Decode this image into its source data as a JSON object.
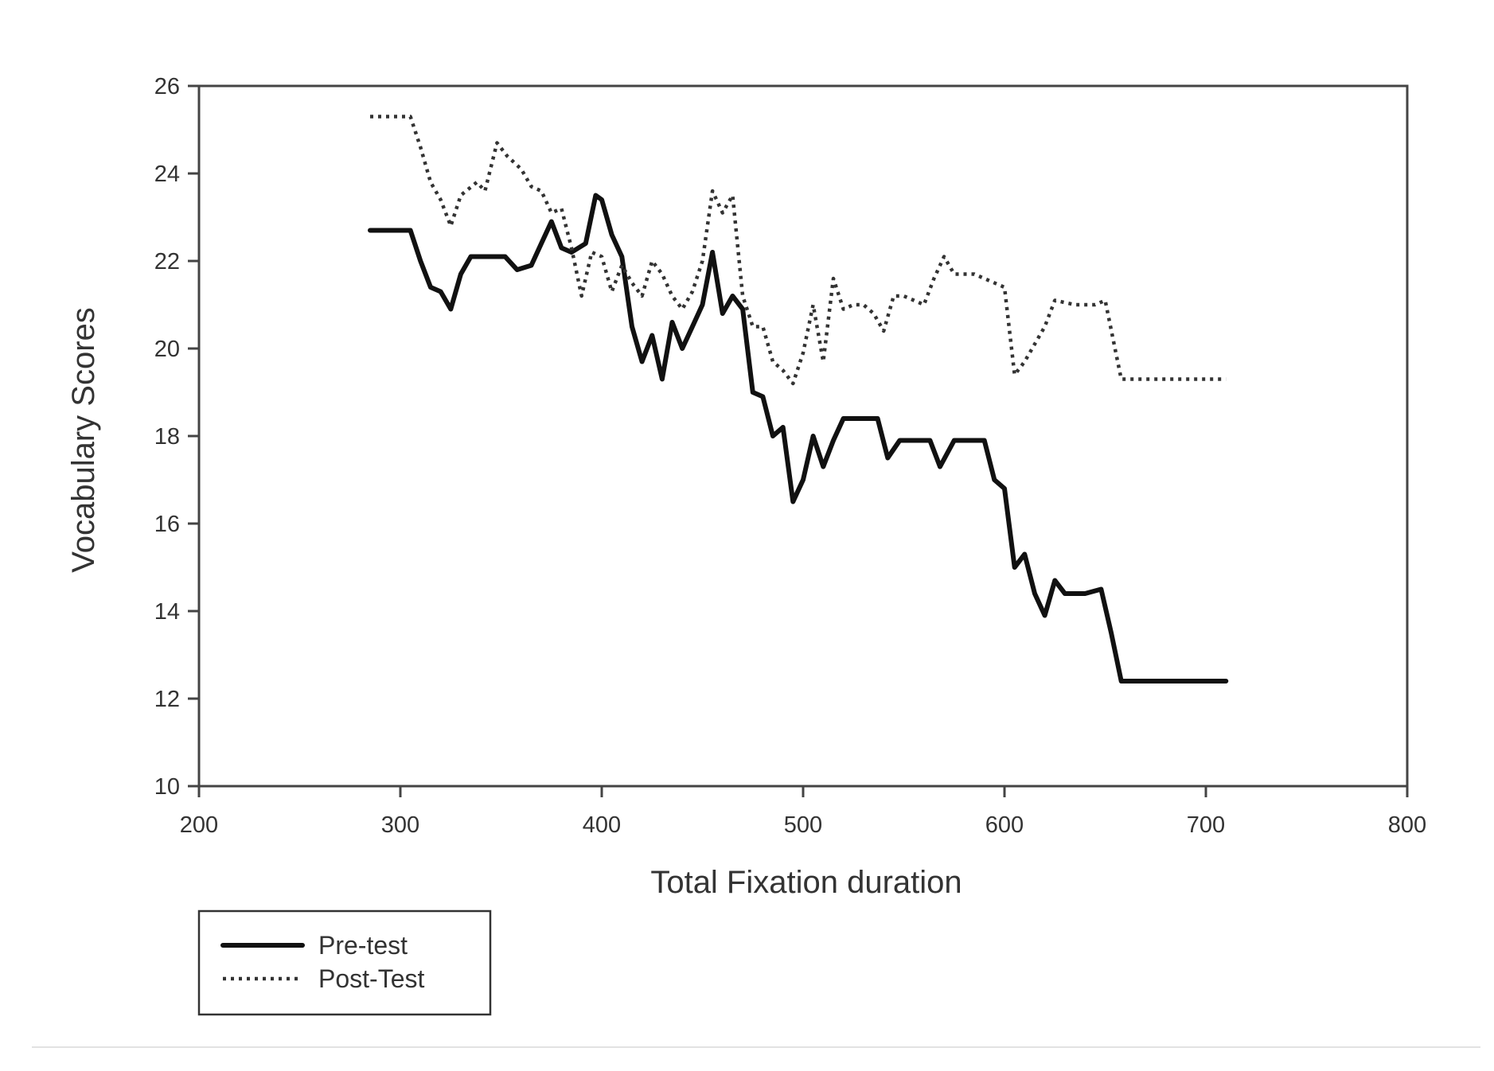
{
  "chart_data": {
    "type": "line",
    "xlabel": "Total Fixation duration",
    "ylabel": "Vocabulary Scores",
    "xlim": [
      200,
      800
    ],
    "ylim": [
      10,
      26
    ],
    "xticks": [
      200,
      300,
      400,
      500,
      600,
      700,
      800
    ],
    "yticks": [
      10,
      12,
      14,
      16,
      18,
      20,
      22,
      24,
      26
    ],
    "grid": false,
    "legend": "bottom-left, below plot",
    "series": [
      {
        "name": "Pre-test",
        "style": "solid",
        "color": "#111111",
        "points": [
          [
            285,
            22.7
          ],
          [
            305,
            22.7
          ],
          [
            310,
            22.0
          ],
          [
            315,
            21.4
          ],
          [
            320,
            21.3
          ],
          [
            325,
            20.9
          ],
          [
            330,
            21.7
          ],
          [
            335,
            22.1
          ],
          [
            345,
            22.1
          ],
          [
            352,
            22.1
          ],
          [
            358,
            21.8
          ],
          [
            365,
            21.9
          ],
          [
            370,
            22.4
          ],
          [
            375,
            22.9
          ],
          [
            380,
            22.3
          ],
          [
            385,
            22.2
          ],
          [
            392,
            22.4
          ],
          [
            397,
            23.5
          ],
          [
            400,
            23.4
          ],
          [
            405,
            22.6
          ],
          [
            410,
            22.1
          ],
          [
            415,
            20.5
          ],
          [
            420,
            19.7
          ],
          [
            425,
            20.3
          ],
          [
            430,
            19.3
          ],
          [
            435,
            20.6
          ],
          [
            440,
            20.0
          ],
          [
            445,
            20.5
          ],
          [
            450,
            21.0
          ],
          [
            455,
            22.2
          ],
          [
            460,
            20.8
          ],
          [
            465,
            21.2
          ],
          [
            470,
            20.9
          ],
          [
            475,
            19.0
          ],
          [
            480,
            18.9
          ],
          [
            485,
            18.0
          ],
          [
            490,
            18.2
          ],
          [
            495,
            16.5
          ],
          [
            500,
            17.0
          ],
          [
            505,
            18.0
          ],
          [
            510,
            17.3
          ],
          [
            515,
            17.9
          ],
          [
            520,
            18.4
          ],
          [
            530,
            18.4
          ],
          [
            537,
            18.4
          ],
          [
            542,
            17.5
          ],
          [
            548,
            17.9
          ],
          [
            558,
            17.9
          ],
          [
            563,
            17.9
          ],
          [
            568,
            17.3
          ],
          [
            575,
            17.9
          ],
          [
            583,
            17.9
          ],
          [
            590,
            17.9
          ],
          [
            595,
            17.0
          ],
          [
            600,
            16.8
          ],
          [
            605,
            15.0
          ],
          [
            610,
            15.3
          ],
          [
            615,
            14.4
          ],
          [
            620,
            13.9
          ],
          [
            625,
            14.7
          ],
          [
            630,
            14.4
          ],
          [
            640,
            14.4
          ],
          [
            648,
            14.5
          ],
          [
            653,
            13.5
          ],
          [
            658,
            12.4
          ],
          [
            680,
            12.4
          ],
          [
            710,
            12.4
          ]
        ]
      },
      {
        "name": "Post-Test",
        "style": "dotted",
        "color": "#333333",
        "points": [
          [
            285,
            25.3
          ],
          [
            305,
            25.3
          ],
          [
            310,
            24.6
          ],
          [
            315,
            23.8
          ],
          [
            320,
            23.4
          ],
          [
            325,
            22.8
          ],
          [
            330,
            23.5
          ],
          [
            338,
            23.8
          ],
          [
            342,
            23.6
          ],
          [
            348,
            24.7
          ],
          [
            353,
            24.4
          ],
          [
            360,
            24.1
          ],
          [
            365,
            23.7
          ],
          [
            370,
            23.6
          ],
          [
            375,
            23.1
          ],
          [
            380,
            23.2
          ],
          [
            385,
            22.3
          ],
          [
            390,
            21.2
          ],
          [
            395,
            22.2
          ],
          [
            400,
            22.1
          ],
          [
            405,
            21.3
          ],
          [
            410,
            21.9
          ],
          [
            415,
            21.5
          ],
          [
            420,
            21.2
          ],
          [
            425,
            22.0
          ],
          [
            430,
            21.7
          ],
          [
            435,
            21.2
          ],
          [
            440,
            20.9
          ],
          [
            445,
            21.3
          ],
          [
            450,
            22.0
          ],
          [
            455,
            23.6
          ],
          [
            460,
            23.1
          ],
          [
            465,
            23.5
          ],
          [
            470,
            21.2
          ],
          [
            475,
            20.5
          ],
          [
            480,
            20.5
          ],
          [
            485,
            19.7
          ],
          [
            490,
            19.5
          ],
          [
            495,
            19.2
          ],
          [
            500,
            19.9
          ],
          [
            505,
            21.0
          ],
          [
            510,
            19.7
          ],
          [
            515,
            21.6
          ],
          [
            520,
            20.9
          ],
          [
            525,
            21.0
          ],
          [
            530,
            21.0
          ],
          [
            535,
            20.8
          ],
          [
            540,
            20.4
          ],
          [
            545,
            21.2
          ],
          [
            550,
            21.2
          ],
          [
            555,
            21.1
          ],
          [
            560,
            21.0
          ],
          [
            565,
            21.6
          ],
          [
            570,
            22.1
          ],
          [
            575,
            21.7
          ],
          [
            585,
            21.7
          ],
          [
            595,
            21.5
          ],
          [
            600,
            21.4
          ],
          [
            605,
            19.4
          ],
          [
            610,
            19.7
          ],
          [
            620,
            20.5
          ],
          [
            625,
            21.1
          ],
          [
            635,
            21.0
          ],
          [
            645,
            21.0
          ],
          [
            650,
            21.1
          ],
          [
            658,
            19.3
          ],
          [
            665,
            19.3
          ],
          [
            710,
            19.3
          ]
        ]
      }
    ]
  }
}
